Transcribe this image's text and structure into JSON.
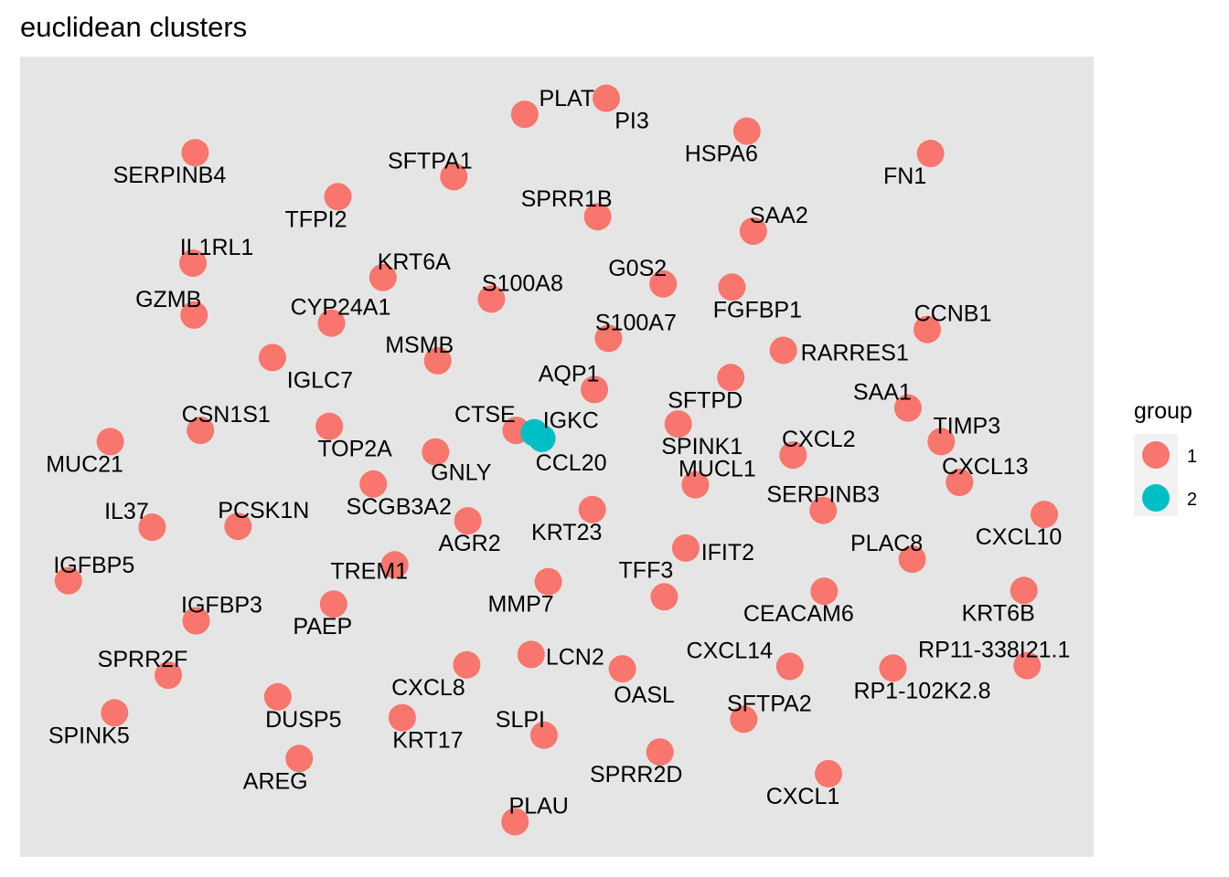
{
  "chart_data": {
    "type": "scatter",
    "title": "euclidean clusters",
    "xlabel": "",
    "ylabel": "",
    "grid": false,
    "legend_position": "right",
    "legend": {
      "title": "group",
      "entries": [
        {
          "label": "1",
          "color": "#F8766D"
        },
        {
          "label": "2",
          "color": "#00BFC4"
        }
      ]
    },
    "xlim": [
      0,
      100
    ],
    "ylim": [
      0,
      100
    ],
    "points": [
      {
        "label": "PLAT",
        "x": 47.0,
        "y": 92.8,
        "group": "1"
      },
      {
        "label": "PI3",
        "x": 54.6,
        "y": 94.8,
        "group": "1"
      },
      {
        "label": "HSPA6",
        "x": 67.7,
        "y": 90.7,
        "group": "1"
      },
      {
        "label": "SFTPA1",
        "x": 40.4,
        "y": 85.0,
        "group": "1"
      },
      {
        "label": "SERPINB4",
        "x": 16.3,
        "y": 88.0,
        "group": "1"
      },
      {
        "label": "TFPI2",
        "x": 29.6,
        "y": 82.5,
        "group": "1"
      },
      {
        "label": "FN1",
        "x": 84.8,
        "y": 87.9,
        "group": "1"
      },
      {
        "label": "SPRR1B",
        "x": 53.8,
        "y": 80.0,
        "group": "1"
      },
      {
        "label": "SAA2",
        "x": 68.3,
        "y": 78.2,
        "group": "1"
      },
      {
        "label": "IL1RL1",
        "x": 16.1,
        "y": 74.2,
        "group": "1"
      },
      {
        "label": "KRT6A",
        "x": 33.8,
        "y": 72.4,
        "group": "1"
      },
      {
        "label": "G0S2",
        "x": 59.9,
        "y": 71.6,
        "group": "1"
      },
      {
        "label": "S100A8",
        "x": 43.9,
        "y": 69.7,
        "group": "1"
      },
      {
        "label": "GZMB",
        "x": 16.2,
        "y": 67.7,
        "group": "1"
      },
      {
        "label": "CYP24A1",
        "x": 29.0,
        "y": 66.7,
        "group": "1"
      },
      {
        "label": "FGFBP1",
        "x": 66.3,
        "y": 71.2,
        "group": "1"
      },
      {
        "label": "CCNB1",
        "x": 84.5,
        "y": 65.9,
        "group": "1"
      },
      {
        "label": "S100A7",
        "x": 54.8,
        "y": 64.8,
        "group": "1"
      },
      {
        "label": "MSMB",
        "x": 38.9,
        "y": 62.0,
        "group": "1"
      },
      {
        "label": "IGLC7",
        "x": 23.5,
        "y": 62.4,
        "group": "1"
      },
      {
        "label": "RARRES1",
        "x": 71.1,
        "y": 63.3,
        "group": "1"
      },
      {
        "label": "AQP1",
        "x": 53.5,
        "y": 58.4,
        "group": "1"
      },
      {
        "label": "SFTPD",
        "x": 66.2,
        "y": 59.9,
        "group": "1"
      },
      {
        "label": "SAA1",
        "x": 82.7,
        "y": 56.1,
        "group": "1"
      },
      {
        "label": "CSN1S1",
        "x": 16.8,
        "y": 53.3,
        "group": "1"
      },
      {
        "label": "TOP2A",
        "x": 28.8,
        "y": 53.8,
        "group": "1"
      },
      {
        "label": "CTSE",
        "x": 46.2,
        "y": 53.3,
        "group": "1"
      },
      {
        "label": "IGKC",
        "x": 47.9,
        "y": 53.0,
        "group": "2"
      },
      {
        "label": "CCL20",
        "x": 48.6,
        "y": 52.3,
        "group": "2"
      },
      {
        "label": "SPINK1",
        "x": 61.3,
        "y": 54.1,
        "group": "1"
      },
      {
        "label": "CXCL2",
        "x": 72.0,
        "y": 50.2,
        "group": "1"
      },
      {
        "label": "TIMP3",
        "x": 85.8,
        "y": 51.9,
        "group": "1"
      },
      {
        "label": "MUC21",
        "x": 8.4,
        "y": 51.9,
        "group": "1"
      },
      {
        "label": "GNLY",
        "x": 38.7,
        "y": 50.6,
        "group": "1"
      },
      {
        "label": "MUCL1",
        "x": 62.9,
        "y": 46.5,
        "group": "1"
      },
      {
        "label": "CXCL13",
        "x": 87.5,
        "y": 46.8,
        "group": "1"
      },
      {
        "label": "SCGB3A2",
        "x": 32.9,
        "y": 46.6,
        "group": "1"
      },
      {
        "label": "SERPINB3",
        "x": 74.8,
        "y": 43.3,
        "group": "1"
      },
      {
        "label": "CXCL10",
        "x": 95.4,
        "y": 42.8,
        "group": "1"
      },
      {
        "label": "IL37",
        "x": 12.3,
        "y": 41.2,
        "group": "1"
      },
      {
        "label": "PCSK1N",
        "x": 20.3,
        "y": 41.3,
        "group": "1"
      },
      {
        "label": "KRT23",
        "x": 53.3,
        "y": 43.4,
        "group": "1"
      },
      {
        "label": "AGR2",
        "x": 41.7,
        "y": 42.0,
        "group": "1"
      },
      {
        "label": "IFIT2",
        "x": 62.0,
        "y": 38.6,
        "group": "1"
      },
      {
        "label": "PLAC8",
        "x": 83.1,
        "y": 37.2,
        "group": "1"
      },
      {
        "label": "IGFBP5",
        "x": 4.5,
        "y": 34.5,
        "group": "1"
      },
      {
        "label": "TREM1",
        "x": 34.9,
        "y": 36.5,
        "group": "1"
      },
      {
        "label": "MMP7",
        "x": 49.2,
        "y": 34.4,
        "group": "1"
      },
      {
        "label": "TFF3",
        "x": 60.0,
        "y": 32.5,
        "group": "1"
      },
      {
        "label": "KRT6B",
        "x": 93.5,
        "y": 33.3,
        "group": "1"
      },
      {
        "label": "CEACAM6",
        "x": 74.9,
        "y": 33.2,
        "group": "1"
      },
      {
        "label": "IGFBP3",
        "x": 16.4,
        "y": 29.5,
        "group": "1"
      },
      {
        "label": "PAEP",
        "x": 29.2,
        "y": 31.6,
        "group": "1"
      },
      {
        "label": "SPRR2F",
        "x": 13.8,
        "y": 22.7,
        "group": "1"
      },
      {
        "label": "LCN2",
        "x": 47.6,
        "y": 25.3,
        "group": "1"
      },
      {
        "label": "OASL",
        "x": 56.1,
        "y": 23.5,
        "group": "1"
      },
      {
        "label": "CXCL14",
        "x": 71.7,
        "y": 23.8,
        "group": "1"
      },
      {
        "label": "RP11-338I21.1",
        "x": 93.8,
        "y": 23.9,
        "group": "1"
      },
      {
        "label": "RP1-102K2.8",
        "x": 81.3,
        "y": 23.6,
        "group": "1"
      },
      {
        "label": "CXCL8",
        "x": 41.6,
        "y": 24.0,
        "group": "1"
      },
      {
        "label": "DUSP5",
        "x": 24.0,
        "y": 20.0,
        "group": "1"
      },
      {
        "label": "SPINK5",
        "x": 8.8,
        "y": 18.0,
        "group": "1"
      },
      {
        "label": "KRT17",
        "x": 35.6,
        "y": 17.4,
        "group": "1"
      },
      {
        "label": "SLPI",
        "x": 48.8,
        "y": 15.2,
        "group": "1"
      },
      {
        "label": "SFTPA2",
        "x": 67.4,
        "y": 17.2,
        "group": "1"
      },
      {
        "label": "SPRR2D",
        "x": 59.6,
        "y": 13.1,
        "group": "1"
      },
      {
        "label": "AREG",
        "x": 26.0,
        "y": 12.3,
        "group": "1"
      },
      {
        "label": "CXCL1",
        "x": 75.3,
        "y": 10.4,
        "group": "1"
      },
      {
        "label": "PLAU",
        "x": 46.1,
        "y": 4.4,
        "group": "1"
      }
    ]
  }
}
